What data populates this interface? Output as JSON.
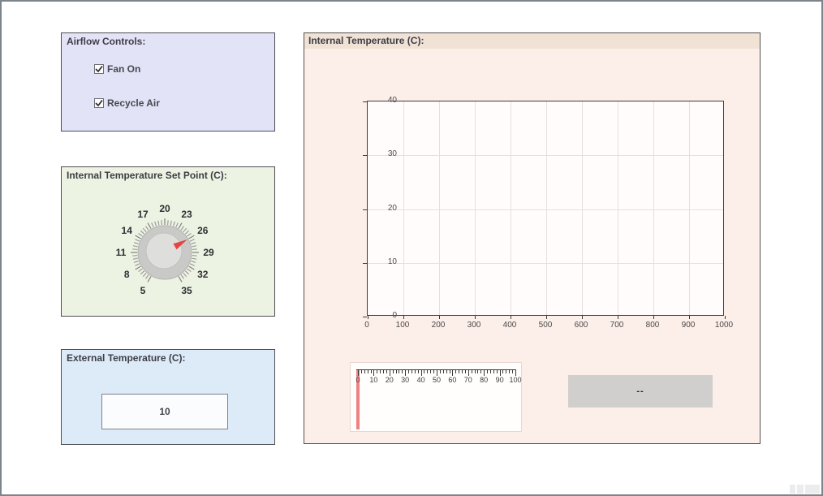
{
  "window": {
    "bg": "#ffffff",
    "border_color": "#7e848c"
  },
  "airflow": {
    "title": "Airflow Controls:",
    "bg": "#e3e3f8",
    "checkboxes": [
      {
        "label": "Fan On",
        "checked": true
      },
      {
        "label": "Recycle Air",
        "checked": true
      }
    ]
  },
  "setpoint": {
    "title": "Internal Temperature Set Point (C):",
    "bg": "#edf3e2",
    "knob": {
      "min": 5,
      "max": 35,
      "tick_labels": [
        5,
        8,
        11,
        14,
        17,
        20,
        23,
        26,
        29,
        32,
        35
      ],
      "value": 26,
      "start_angle_deg": 240,
      "end_angle_deg": -60,
      "pointer_color": "#e2463f",
      "body_color": "#c9c9c7",
      "cap_color": "#dededc"
    }
  },
  "external": {
    "title": "External Temperature (C):",
    "bg": "#ddebf8",
    "value": "10"
  },
  "internal": {
    "title": "Internal Temperature (C):",
    "bg": "#fceee8",
    "header_bg": "#f0e2d5",
    "chart_data": {
      "type": "line",
      "title": "Internal Temperature (C)",
      "x": [],
      "series": [],
      "xlim": [
        0,
        1000
      ],
      "ylim": [
        0,
        40
      ],
      "xticks": [
        0,
        100,
        200,
        300,
        400,
        500,
        600,
        700,
        800,
        900,
        1000
      ],
      "yticks": [
        0,
        10,
        20,
        30,
        40
      ],
      "grid": true,
      "legend": "none",
      "plot_bg": "#fffcfb"
    },
    "gauge": {
      "min": 0,
      "max": 100,
      "tick_labels": [
        0,
        10,
        20,
        30,
        40,
        50,
        60,
        70,
        80,
        90,
        100
      ],
      "minor_tick_step": 2,
      "value": 0,
      "pointer_color": "#ef8181"
    },
    "display": {
      "text": "--",
      "bg": "#d1cfcd"
    }
  }
}
